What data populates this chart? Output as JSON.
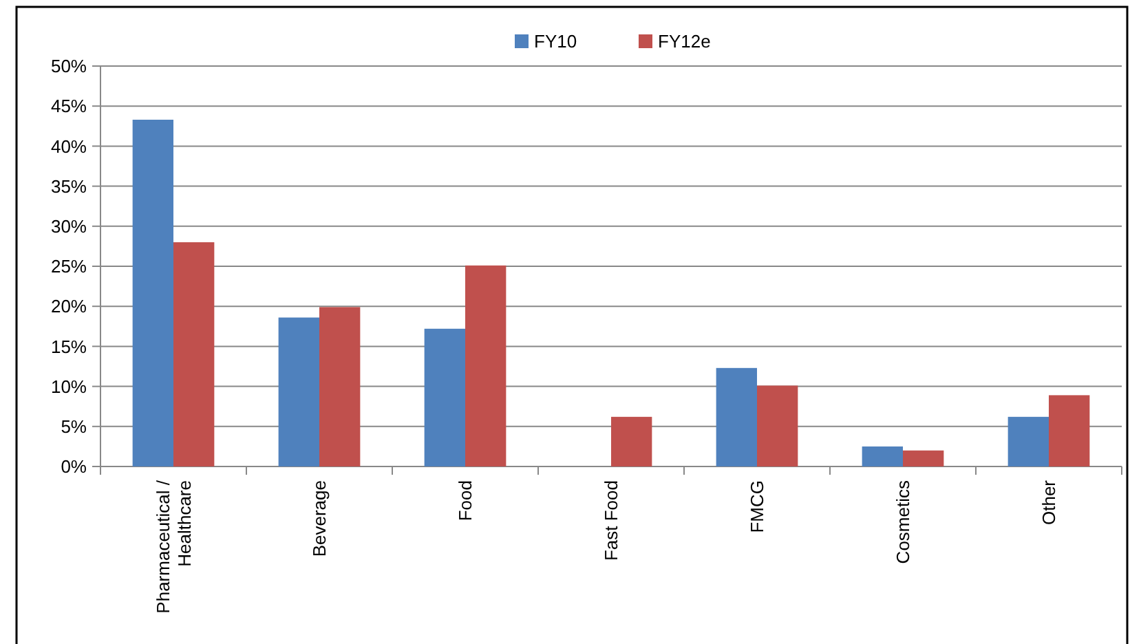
{
  "chart_data": {
    "type": "bar",
    "categories": [
      "Pharmaceutical / Healthcare",
      "Beverage",
      "Food",
      "Fast Food",
      "FMCG",
      "Cosmetics",
      "Other"
    ],
    "series": [
      {
        "name": "FY10",
        "color": "#4f81bd",
        "values": [
          43.3,
          18.6,
          17.2,
          0,
          12.3,
          2.5,
          6.2
        ]
      },
      {
        "name": "FY12e",
        "color": "#c0504d",
        "values": [
          28.0,
          19.9,
          25.1,
          6.2,
          10.1,
          2.0,
          8.9
        ]
      }
    ],
    "ylim": [
      0,
      50
    ],
    "yticks": [
      {
        "value": 0,
        "label": "0%"
      },
      {
        "value": 5,
        "label": "5%"
      },
      {
        "value": 10,
        "label": "10%"
      },
      {
        "value": 15,
        "label": "15%"
      },
      {
        "value": 20,
        "label": "20%"
      },
      {
        "value": 25,
        "label": "25%"
      },
      {
        "value": 30,
        "label": "30%"
      },
      {
        "value": 35,
        "label": "35%"
      },
      {
        "value": 40,
        "label": "40%"
      },
      {
        "value": 45,
        "label": "45%"
      },
      {
        "value": 50,
        "label": "50%"
      }
    ],
    "grid": "y",
    "legend": "top"
  }
}
